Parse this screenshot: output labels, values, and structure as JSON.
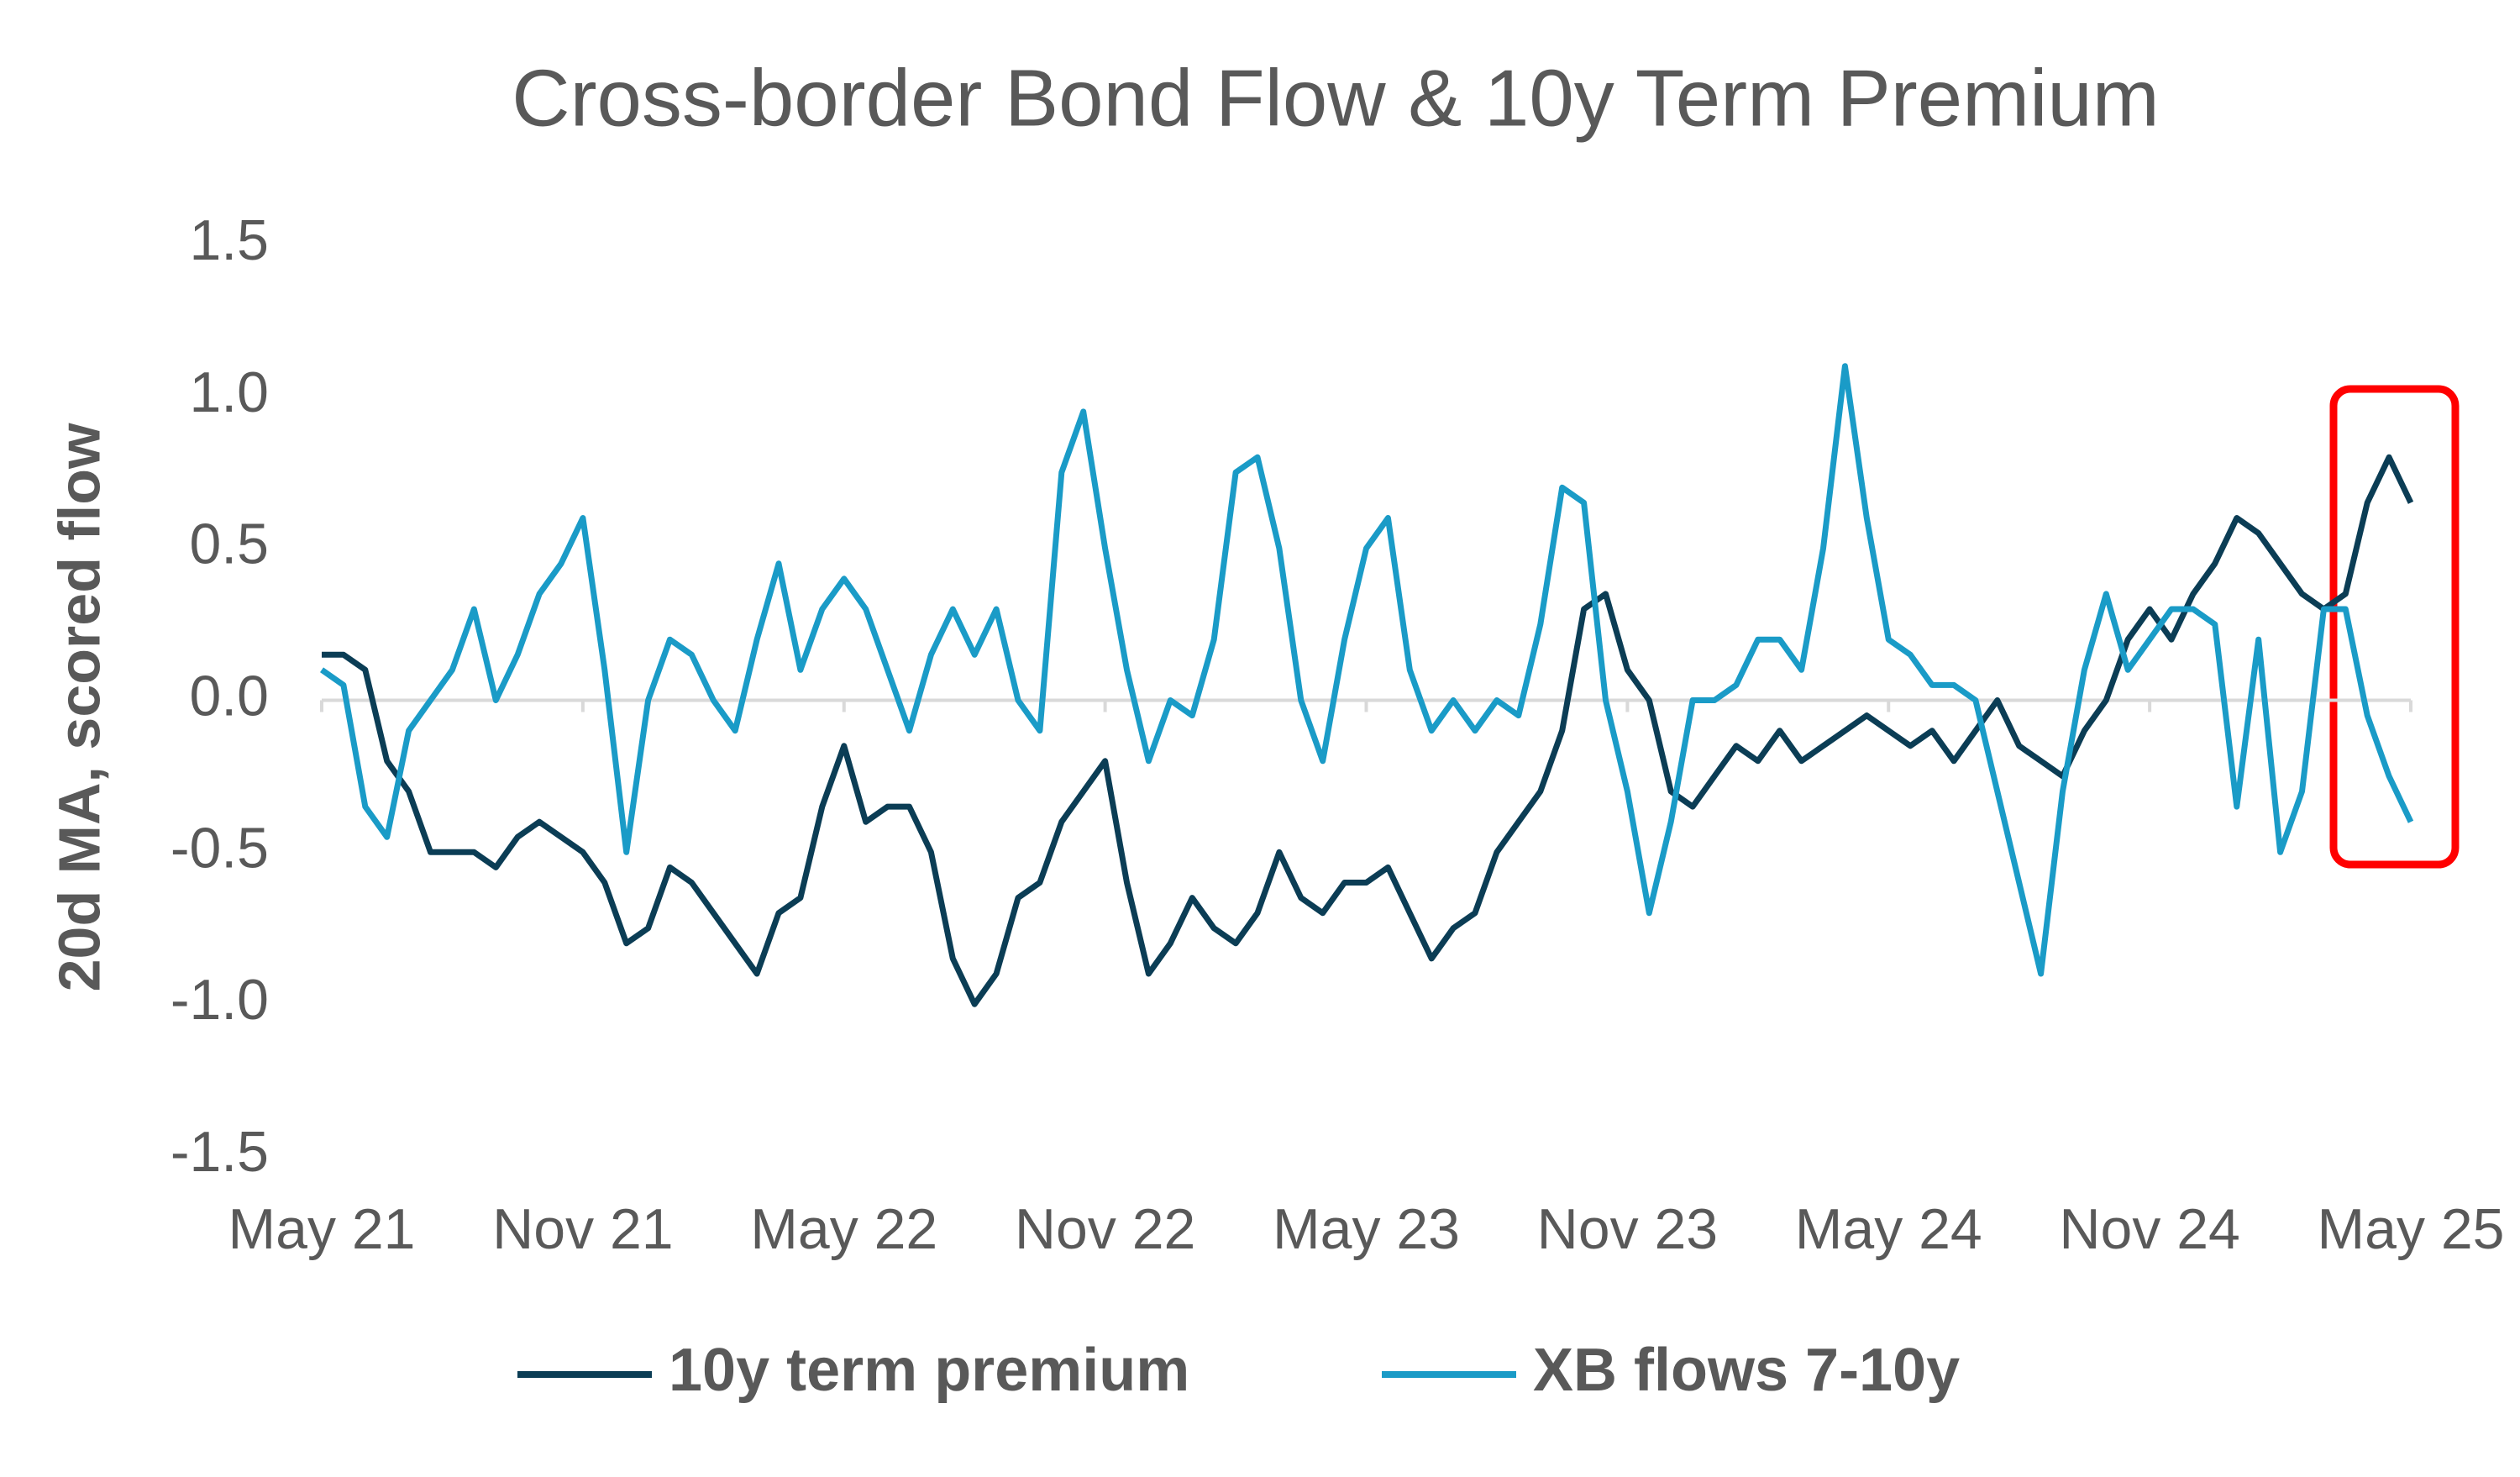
{
  "chart_data": {
    "type": "line",
    "title": "Cross-border Bond Flow & 10y Term Premium",
    "y_label": "20d MA, scored flow",
    "categories": [
      "May 21",
      null,
      null,
      null,
      null,
      null,
      null,
      null,
      null,
      null,
      null,
      null,
      "Nov 21",
      null,
      null,
      null,
      null,
      null,
      null,
      null,
      null,
      null,
      null,
      null,
      "May 22",
      null,
      null,
      null,
      null,
      null,
      null,
      null,
      null,
      null,
      null,
      null,
      "Nov 22",
      null,
      null,
      null,
      null,
      null,
      null,
      null,
      null,
      null,
      null,
      null,
      "May 23",
      null,
      null,
      null,
      null,
      null,
      null,
      null,
      null,
      null,
      null,
      null,
      "Nov 23",
      null,
      null,
      null,
      null,
      null,
      null,
      null,
      null,
      null,
      null,
      null,
      "May 24",
      null,
      null,
      null,
      null,
      null,
      null,
      null,
      null,
      null,
      null,
      null,
      "Nov 24",
      null,
      null,
      null,
      null,
      null,
      null,
      null,
      null,
      null,
      null,
      null,
      "May 25"
    ],
    "series": [
      {
        "name": "10y term premium",
        "color": "#0b3d55",
        "values": [
          0.15,
          0.15,
          0.1,
          -0.2,
          -0.3,
          -0.5,
          -0.5,
          -0.5,
          -0.55,
          -0.45,
          -0.4,
          -0.45,
          -0.5,
          -0.6,
          -0.8,
          -0.75,
          -0.55,
          -0.6,
          -0.7,
          -0.8,
          -0.9,
          -0.7,
          -0.65,
          -0.35,
          -0.15,
          -0.4,
          -0.35,
          -0.35,
          -0.5,
          -0.85,
          -1.0,
          -0.9,
          -0.65,
          -0.6,
          -0.4,
          -0.3,
          -0.2,
          -0.6,
          -0.9,
          -0.8,
          -0.65,
          -0.75,
          -0.8,
          -0.7,
          -0.5,
          -0.65,
          -0.7,
          -0.6,
          -0.6,
          -0.55,
          -0.7,
          -0.85,
          -0.75,
          -0.7,
          -0.5,
          -0.4,
          -0.3,
          -0.1,
          0.3,
          0.35,
          0.1,
          0.0,
          -0.3,
          -0.35,
          -0.25,
          -0.15,
          -0.2,
          -0.1,
          -0.2,
          -0.15,
          -0.1,
          -0.05,
          -0.1,
          -0.15,
          -0.1,
          -0.2,
          -0.1,
          0.0,
          -0.15,
          -0.2,
          -0.25,
          -0.1,
          0.0,
          0.2,
          0.3,
          0.2,
          0.35,
          0.45,
          0.6,
          0.55,
          0.45,
          0.35,
          0.3,
          0.35,
          0.65,
          0.8,
          0.65
        ]
      },
      {
        "name": "XB flows 7-10y",
        "color": "#1a9bc7",
        "values": [
          0.1,
          0.05,
          -0.35,
          -0.45,
          -0.1,
          0.0,
          0.1,
          0.3,
          0.0,
          0.15,
          0.35,
          0.45,
          0.6,
          0.1,
          -0.5,
          0.0,
          0.2,
          0.15,
          0.0,
          -0.1,
          0.2,
          0.45,
          0.1,
          0.3,
          0.4,
          0.3,
          0.1,
          -0.1,
          0.15,
          0.3,
          0.15,
          0.3,
          0.0,
          -0.1,
          0.75,
          0.95,
          0.5,
          0.1,
          -0.2,
          0.0,
          -0.05,
          0.2,
          0.75,
          0.8,
          0.5,
          0.0,
          -0.2,
          0.2,
          0.5,
          0.6,
          0.1,
          -0.1,
          0.0,
          -0.1,
          0.0,
          -0.05,
          0.25,
          0.7,
          0.65,
          0.0,
          -0.3,
          -0.7,
          -0.4,
          0.0,
          0.0,
          0.05,
          0.2,
          0.2,
          0.1,
          0.5,
          1.1,
          0.6,
          0.2,
          0.15,
          0.05,
          0.05,
          0.0,
          -0.3,
          -0.6,
          -0.9,
          -0.3,
          0.1,
          0.35,
          0.1,
          0.2,
          0.3,
          0.3,
          0.25,
          -0.35,
          0.2,
          -0.5,
          -0.3,
          0.3,
          0.3,
          -0.05,
          -0.25,
          -0.4
        ]
      }
    ],
    "ylim": [
      -1.5,
      1.5
    ],
    "yticks": [
      1.5,
      {
        "value": 1.0,
        "label": "1.0"
      },
      0.5,
      {
        "value": 0.0,
        "label": "0.0"
      },
      -0.5,
      {
        "value": -1.0,
        "label": "-1.0"
      },
      -1.5
    ],
    "grid": false
  }
}
